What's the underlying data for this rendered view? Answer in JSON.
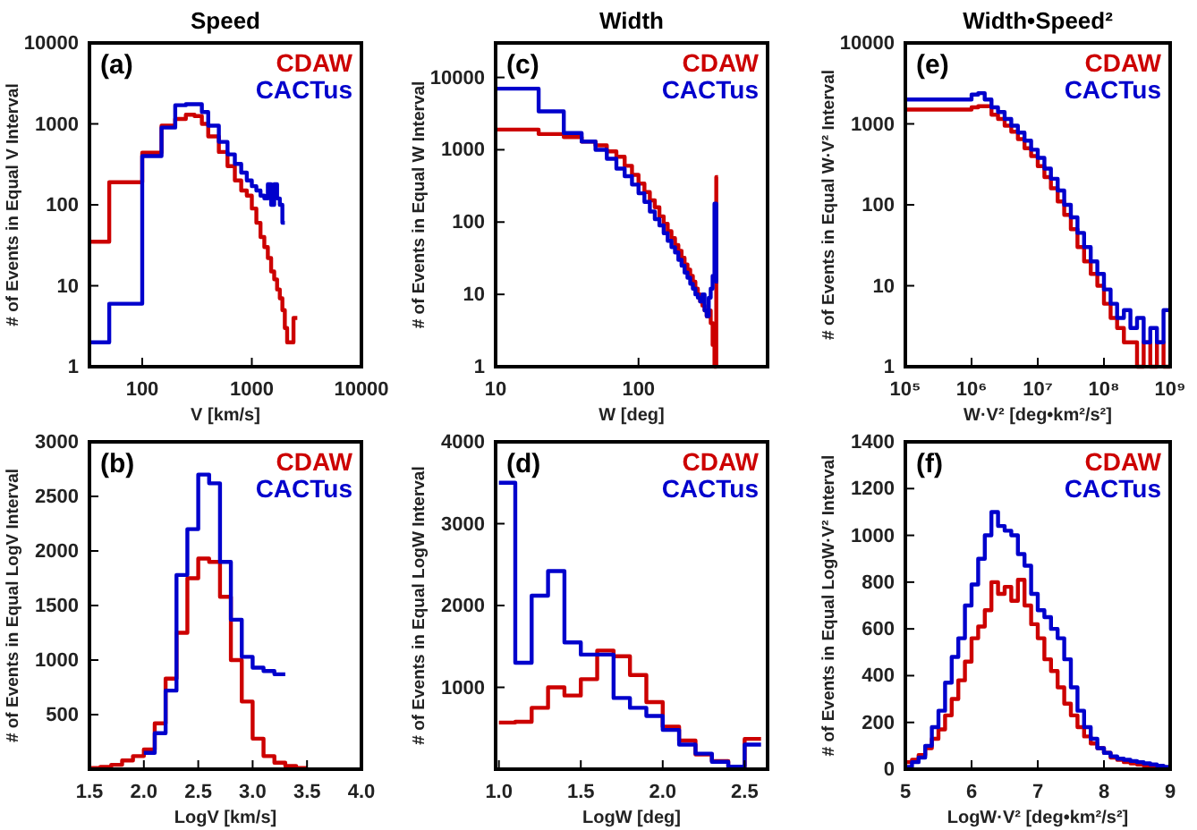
{
  "chart_data": [
    {
      "type": "step",
      "title": "Speed",
      "xlabel": "V [km/s]",
      "ylabel": "# of Events in Equal V Interval",
      "log": "xy",
      "annotations": [
        "(a)"
      ],
      "xlim": [
        33,
        10000
      ],
      "ylim": [
        1,
        10000
      ],
      "xticks": [
        100,
        1000,
        10000
      ],
      "yticks": [
        1,
        10,
        100,
        1000,
        10000
      ],
      "series": [
        {
          "name": "CDAW",
          "color": "#cc0000",
          "x": [
            33,
            50,
            100,
            150,
            200,
            250,
            300,
            350,
            400,
            500,
            600,
            700,
            800,
            900,
            1000,
            1100,
            1200,
            1300,
            1400,
            1500,
            1600,
            1700,
            1800,
            1900,
            2000,
            2100,
            2200,
            2300,
            2400,
            2600
          ],
          "values": [
            35,
            190,
            440,
            950,
            1150,
            1300,
            1250,
            1000,
            700,
            450,
            300,
            200,
            150,
            130,
            90,
            60,
            40,
            30,
            22,
            15,
            12,
            9,
            7,
            5,
            3,
            2,
            2,
            2,
            4,
            4
          ]
        },
        {
          "name": "CACTus",
          "color": "#0000cc",
          "x": [
            33,
            50,
            100,
            150,
            200,
            250,
            300,
            350,
            400,
            500,
            600,
            700,
            800,
            900,
            1000,
            1100,
            1200,
            1300,
            1400,
            1500,
            1600,
            1700,
            1800,
            1900,
            2000
          ],
          "values": [
            2,
            6,
            400,
            900,
            1700,
            1750,
            1750,
            1400,
            950,
            600,
            420,
            320,
            250,
            200,
            170,
            150,
            130,
            120,
            180,
            100,
            180,
            120,
            100,
            60,
            60
          ]
        }
      ]
    },
    {
      "type": "step",
      "title": "Width",
      "xlabel": "W [deg]",
      "ylabel": "# of Events in Equal W Interval",
      "log": "xy",
      "annotations": [
        "(c)"
      ],
      "xlim": [
        10,
        800
      ],
      "ylim": [
        1,
        30000
      ],
      "xticks": [
        10,
        100
      ],
      "yticks": [
        1,
        10,
        100,
        1000,
        10000
      ],
      "series": [
        {
          "name": "CDAW",
          "color": "#cc0000",
          "x": [
            10,
            20,
            30,
            40,
            50,
            60,
            70,
            80,
            90,
            100,
            110,
            120,
            130,
            140,
            150,
            160,
            170,
            180,
            190,
            200,
            210,
            220,
            230,
            240,
            250,
            260,
            270,
            280,
            290,
            300,
            310,
            320,
            330,
            340,
            350,
            360
          ],
          "values": [
            1900,
            1650,
            1500,
            1300,
            1150,
            950,
            800,
            600,
            450,
            340,
            260,
            200,
            160,
            120,
            95,
            75,
            60,
            48,
            40,
            32,
            26,
            22,
            18,
            15,
            12,
            10,
            8,
            7,
            6,
            5,
            6,
            4,
            2,
            1,
            420,
            420
          ]
        },
        {
          "name": "CACTus",
          "color": "#0000cc",
          "x": [
            10,
            20,
            30,
            40,
            50,
            60,
            70,
            80,
            90,
            100,
            110,
            120,
            130,
            140,
            150,
            160,
            170,
            180,
            190,
            200,
            210,
            220,
            230,
            240,
            250,
            260,
            270,
            280,
            290,
            300,
            310,
            320,
            330,
            340,
            350,
            360
          ],
          "values": [
            7000,
            3400,
            1700,
            1300,
            1000,
            750,
            550,
            430,
            330,
            250,
            190,
            140,
            110,
            90,
            70,
            55,
            45,
            38,
            30,
            25,
            20,
            17,
            14,
            12,
            10,
            9,
            8,
            10,
            6,
            5,
            9,
            12,
            18,
            180,
            15,
            15
          ]
        }
      ]
    },
    {
      "type": "step",
      "title": "Width•Speed²",
      "xlabel": "W·V² [deg•km²/s²]",
      "ylabel": "# of Events in Equal W·V² Interval",
      "log": "xy",
      "annotations": [
        "(e)"
      ],
      "xlim": [
        100000,
        1000000000
      ],
      "ylim": [
        1,
        10000
      ],
      "xticks": [
        {
          "value": 100000,
          "label": "10⁵"
        },
        {
          "value": 1000000,
          "label": "10⁶"
        },
        {
          "value": 10000000,
          "label": "10⁷"
        },
        {
          "value": 100000000,
          "label": "10⁸"
        },
        {
          "value": 1000000000,
          "label": "10⁹"
        }
      ],
      "yticks": [
        1,
        10,
        100,
        1000,
        10000
      ],
      "series": [
        {
          "name": "CDAW",
          "color": "#cc0000",
          "x": [
            100000.0,
            1000000.0,
            1260000.0,
            1580000.0,
            2000000.0,
            2510000.0,
            3160000.0,
            3980000.0,
            5010000.0,
            6310000.0,
            7940000.0,
            10000000.0,
            12600000.0,
            15800000.0,
            20000000.0,
            25100000.0,
            31600000.0,
            39800000.0,
            50100000.0,
            63100000.0,
            79400000.0,
            100000000.0,
            126000000.0,
            158000000.0,
            200000000.0,
            251000000.0,
            316000000.0,
            398000000.0,
            501000000.0,
            631000000.0,
            794000000.0,
            1000000000.0
          ],
          "values": [
            1500,
            1600,
            1650,
            1650,
            1300,
            1150,
            950,
            800,
            650,
            500,
            400,
            300,
            220,
            160,
            110,
            75,
            50,
            30,
            20,
            14,
            10,
            6,
            4,
            3,
            2,
            2,
            1,
            2,
            1,
            2,
            1,
            1
          ]
        },
        {
          "name": "CACTus",
          "color": "#0000cc",
          "x": [
            100000.0,
            1000000.0,
            1260000.0,
            1580000.0,
            2000000.0,
            2510000.0,
            3160000.0,
            3980000.0,
            5010000.0,
            6310000.0,
            7940000.0,
            10000000.0,
            12600000.0,
            15800000.0,
            20000000.0,
            25100000.0,
            31600000.0,
            39800000.0,
            50100000.0,
            63100000.0,
            79400000.0,
            100000000.0,
            126000000.0,
            158000000.0,
            200000000.0,
            251000000.0,
            316000000.0,
            398000000.0,
            501000000.0,
            631000000.0,
            794000000.0,
            1000000000.0
          ],
          "values": [
            2000,
            2300,
            2400,
            2000,
            1600,
            1400,
            1150,
            950,
            780,
            620,
            480,
            380,
            280,
            210,
            150,
            100,
            70,
            45,
            30,
            20,
            14,
            9,
            6,
            4,
            5,
            3,
            4,
            2,
            3,
            2,
            5,
            5
          ]
        }
      ]
    },
    {
      "type": "step",
      "xlabel": "LogV [km/s]",
      "ylabel": "# of Events in Equal LogV Interval",
      "annotations": [
        "(b)"
      ],
      "xlim": [
        1.5,
        4
      ],
      "ylim": [
        0,
        3000
      ],
      "xticks": [
        1.5,
        {
          "value": 2,
          "label": "2.0"
        },
        2.5,
        {
          "value": 3,
          "label": "3.0"
        },
        3.5,
        {
          "value": 4,
          "label": "4.0"
        }
      ],
      "yticks": [
        500,
        1000,
        1500,
        2000,
        2500,
        3000
      ],
      "series": [
        {
          "name": "CDAW",
          "color": "#cc0000",
          "x": [
            1.5,
            1.6,
            1.7,
            1.8,
            1.9,
            2.0,
            2.1,
            2.2,
            2.3,
            2.4,
            2.5,
            2.6,
            2.7,
            2.8,
            2.9,
            3.0,
            3.1,
            3.2,
            3.3,
            3.4,
            3.5
          ],
          "values": [
            10,
            20,
            40,
            80,
            120,
            180,
            420,
            830,
            1250,
            1750,
            1930,
            1900,
            1580,
            1000,
            620,
            280,
            120,
            60,
            30,
            10,
            10
          ]
        },
        {
          "name": "CACTus",
          "color": "#0000cc",
          "x": [
            2.0,
            2.1,
            2.2,
            2.3,
            2.4,
            2.5,
            2.6,
            2.7,
            2.8,
            2.9,
            3.0,
            3.1,
            3.2,
            3.3
          ],
          "values": [
            150,
            330,
            720,
            1780,
            2200,
            2700,
            2620,
            1900,
            1370,
            1030,
            930,
            900,
            870,
            870
          ]
        }
      ]
    },
    {
      "type": "step",
      "xlabel": "LogW [deg]",
      "ylabel": "# of Events in Equal LogW Interval",
      "annotations": [
        "(d)"
      ],
      "xlim": [
        0.98,
        2.64
      ],
      "ylim": [
        0,
        4000
      ],
      "xticks": [
        {
          "value": 1,
          "label": "1.0"
        },
        1.5,
        {
          "value": 2,
          "label": "2.0"
        },
        2.5
      ],
      "yticks": [
        1000,
        2000,
        3000,
        4000
      ],
      "series": [
        {
          "name": "CDAW",
          "color": "#cc0000",
          "x": [
            1.0,
            1.1,
            1.2,
            1.3,
            1.4,
            1.5,
            1.6,
            1.7,
            1.8,
            1.9,
            2.0,
            2.1,
            2.2,
            2.3,
            2.4,
            2.5,
            2.6
          ],
          "values": [
            570,
            580,
            750,
            1000,
            900,
            1100,
            1450,
            1380,
            1150,
            820,
            520,
            350,
            180,
            100,
            30,
            370,
            370
          ]
        },
        {
          "name": "CACTus",
          "color": "#0000cc",
          "x": [
            1.0,
            1.1,
            1.2,
            1.3,
            1.4,
            1.5,
            1.6,
            1.7,
            1.8,
            1.9,
            2.0,
            2.1,
            2.2,
            2.3,
            2.4,
            2.5,
            2.6
          ],
          "values": [
            3500,
            1300,
            2120,
            2420,
            1550,
            1400,
            1400,
            870,
            750,
            650,
            480,
            300,
            190,
            90,
            30,
            300,
            300
          ]
        }
      ]
    },
    {
      "type": "step",
      "xlabel": "LogW·V² [deg•km²/s²]",
      "ylabel": "# of Events in Equal LogW·V² Interval",
      "annotations": [
        "(f)"
      ],
      "xlim": [
        5,
        9
      ],
      "ylim": [
        0,
        1400
      ],
      "xticks": [
        5,
        6,
        7,
        8,
        9
      ],
      "yticks": [
        0,
        200,
        400,
        600,
        800,
        1000,
        1200,
        1400
      ],
      "series": [
        {
          "name": "CDAW",
          "color": "#cc0000",
          "x": [
            5.0,
            5.1,
            5.2,
            5.3,
            5.4,
            5.5,
            5.6,
            5.7,
            5.8,
            5.9,
            6.0,
            6.1,
            6.2,
            6.3,
            6.4,
            6.5,
            6.6,
            6.7,
            6.8,
            6.9,
            7.0,
            7.1,
            7.2,
            7.3,
            7.4,
            7.5,
            7.6,
            7.7,
            7.8,
            7.9,
            8.0,
            8.1,
            8.2,
            8.3,
            8.4,
            8.5,
            8.6,
            8.7,
            8.8,
            8.9,
            9.0
          ],
          "values": [
            30,
            40,
            60,
            90,
            130,
            170,
            230,
            300,
            380,
            460,
            560,
            610,
            680,
            800,
            750,
            780,
            720,
            810,
            700,
            620,
            560,
            470,
            420,
            350,
            280,
            230,
            180,
            140,
            110,
            90,
            70,
            50,
            40,
            30,
            25,
            20,
            15,
            10,
            8,
            5,
            5
          ]
        },
        {
          "name": "CACTus",
          "color": "#0000cc",
          "x": [
            5.0,
            5.1,
            5.2,
            5.3,
            5.4,
            5.5,
            5.6,
            5.7,
            5.8,
            5.9,
            6.0,
            6.1,
            6.2,
            6.3,
            6.4,
            6.5,
            6.6,
            6.7,
            6.8,
            6.9,
            7.0,
            7.1,
            7.2,
            7.3,
            7.4,
            7.5,
            7.6,
            7.7,
            7.8,
            7.9,
            8.0,
            8.1,
            8.2,
            8.3,
            8.4,
            8.5,
            8.6,
            8.7,
            8.8,
            8.9,
            9.0
          ],
          "values": [
            10,
            30,
            50,
            100,
            180,
            250,
            370,
            480,
            560,
            700,
            790,
            900,
            1000,
            1100,
            1040,
            1020,
            1000,
            920,
            870,
            750,
            680,
            650,
            600,
            560,
            470,
            350,
            250,
            180,
            130,
            90,
            70,
            55,
            45,
            40,
            35,
            30,
            25,
            20,
            15,
            10,
            10
          ]
        }
      ]
    }
  ]
}
